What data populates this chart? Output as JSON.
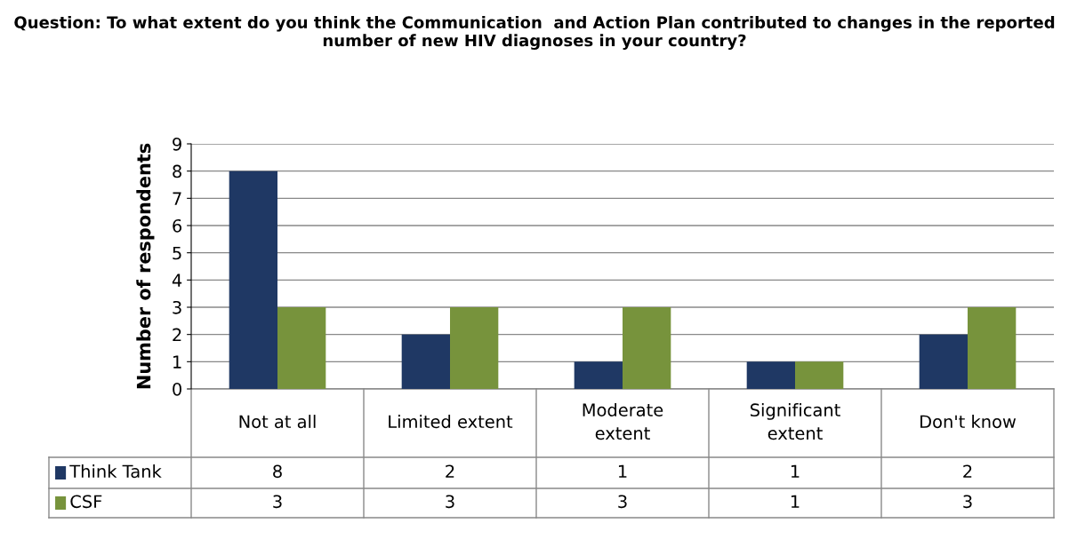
{
  "chart_data": {
    "type": "bar",
    "title": "Question: To what extent do you think the Communication  and Action Plan contributed to changes in the reported number of new HIV diagnoses in your country?",
    "ylabel": "Number of respondents",
    "categories": [
      "Not at all",
      "Limited extent",
      "Moderate\nextent",
      "Significant\nextent",
      "Don't know"
    ],
    "series": [
      {
        "name": "Think Tank",
        "color": "#1f3864",
        "values": [
          8,
          2,
          1,
          1,
          2
        ]
      },
      {
        "name": "CSF",
        "color": "#77933c",
        "values": [
          3,
          3,
          3,
          1,
          3
        ]
      }
    ],
    "ylim": [
      0,
      9
    ],
    "yticks": [
      0,
      1,
      2,
      3,
      4,
      5,
      6,
      7,
      8,
      9
    ],
    "grid": "y",
    "data_labels": true,
    "legend": "bottom left"
  }
}
